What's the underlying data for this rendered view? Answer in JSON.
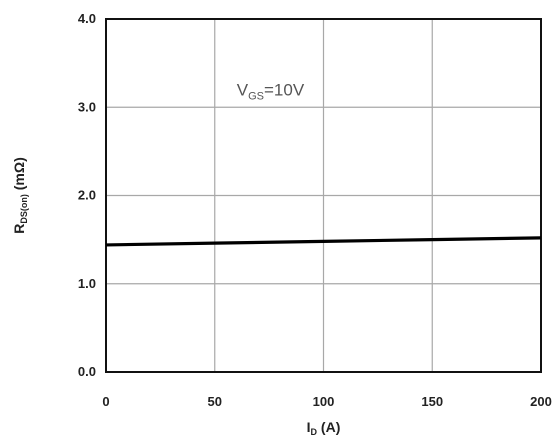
{
  "chart_data": {
    "type": "line",
    "xlabel": {
      "main": "I",
      "sub": "D",
      "unit": " (A)"
    },
    "ylabel": {
      "main": "R",
      "sub": "DS(on)",
      "unit": " (mΩ)"
    },
    "xlim": [
      0,
      200
    ],
    "ylim": [
      0,
      4.0
    ],
    "x_ticks": [
      0,
      50,
      100,
      150,
      200
    ],
    "x_tick_labels": [
      "0",
      "50",
      "100",
      "150",
      "200"
    ],
    "y_ticks": [
      0,
      1.0,
      2.0,
      3.0,
      4.0
    ],
    "y_tick_labels": [
      "0.0",
      "1.0",
      "2.0",
      "3.0",
      "4.0"
    ],
    "grid": true,
    "series": [
      {
        "x": [
          0,
          50,
          100,
          150,
          200
        ],
        "y": [
          1.44,
          1.46,
          1.48,
          1.5,
          1.52
        ],
        "color": "#000000"
      }
    ],
    "annotation": {
      "main": "V",
      "sub": "GS",
      "rest": "=10V",
      "x": 50,
      "y": 3.2
    }
  }
}
